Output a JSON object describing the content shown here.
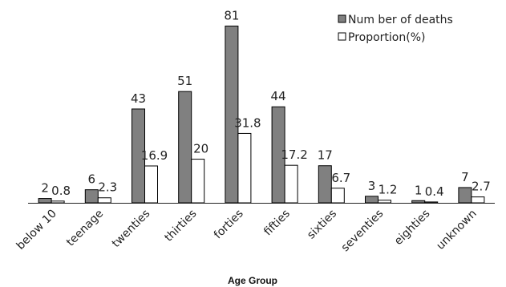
{
  "chart_data": {
    "type": "bar",
    "xlabel": "Age Group",
    "ylabel": "",
    "ylim": [
      0,
      90
    ],
    "grid": false,
    "legend_position": "top-right",
    "categories": [
      "below 10",
      "teenage",
      "twenties",
      "thirties",
      "forties",
      "fifties",
      "sixties",
      "seventies",
      "eighties",
      "unknown"
    ],
    "series": [
      {
        "name": "Num ber of deaths",
        "color": "#808080",
        "values": [
          2,
          6,
          43,
          51,
          81,
          44,
          17,
          3,
          1,
          7
        ],
        "labels": [
          "2",
          "6",
          "43",
          "51",
          "81",
          "44",
          "17",
          "3",
          "1",
          "7"
        ]
      },
      {
        "name": "Proportion(%)",
        "color": "#ffffff",
        "values": [
          0.8,
          2.3,
          16.9,
          20,
          31.8,
          17.2,
          6.7,
          1.2,
          0.4,
          2.7
        ],
        "labels": [
          "0.8",
          "2.3",
          "16.9",
          "20",
          "31.8",
          "17.2",
          "6.7",
          "1.2",
          "0.4",
          "2.7"
        ]
      }
    ]
  }
}
